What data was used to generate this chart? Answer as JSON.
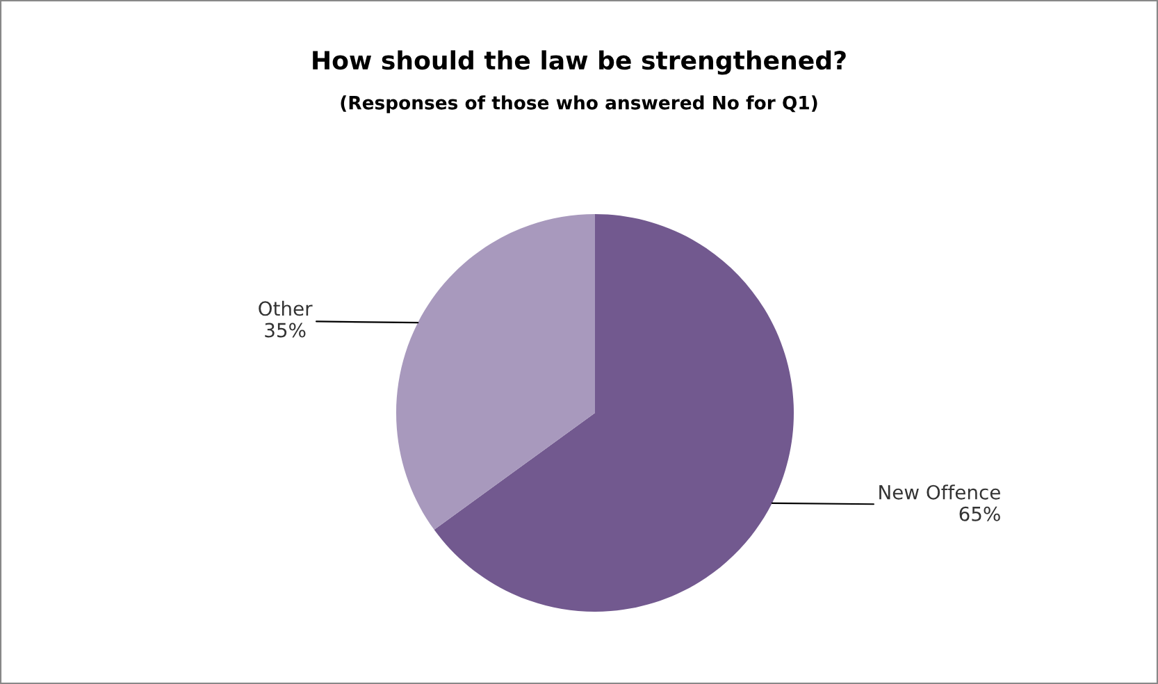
{
  "chart_data": {
    "type": "pie",
    "title": "How should the law be strengthened?",
    "subtitle": "(Responses of those who answered No for Q1)",
    "categories": [
      "New Offence",
      "Other"
    ],
    "values": [
      65,
      35
    ],
    "value_labels": [
      "65%",
      "35%"
    ],
    "colors": [
      "#72598f",
      "#a899bd"
    ],
    "legend": false
  }
}
